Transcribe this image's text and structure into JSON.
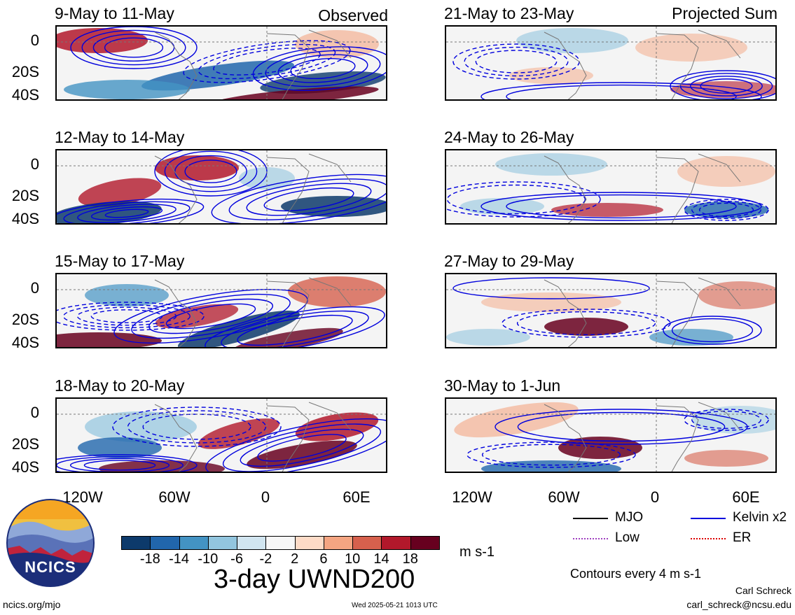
{
  "figure": {
    "title": "3-day UWND200",
    "units": "m s-1",
    "contour_note": "Contours every 4 m s-1",
    "author": "Carl Schreck",
    "email": "carl_schreck@ncsu.edu",
    "url": "ncics.org/mjo",
    "timestamp": "Wed 2025-05-21 1013 UTC",
    "logo_text": "NCICS"
  },
  "columns": {
    "left_label": "Observed",
    "right_label": "Projected Sum"
  },
  "panels": {
    "left": [
      "9-May to 11-May",
      "12-May to 14-May",
      "15-May to 17-May",
      "18-May to 20-May"
    ],
    "right": [
      "21-May to 23-May",
      "24-May to 26-May",
      "27-May to 29-May",
      "30-May to 1-Jun"
    ]
  },
  "axes": {
    "y_ticks": [
      "0",
      "20S",
      "40S"
    ],
    "x_ticks": [
      "120W",
      "60W",
      "0",
      "60E"
    ]
  },
  "colorbar": {
    "labels": [
      "-18",
      "-14",
      "-10",
      "-6",
      "-2",
      "2",
      "6",
      "10",
      "14",
      "18"
    ],
    "colors": [
      "#0d3a6b",
      "#2166ac",
      "#4393c3",
      "#92c5de",
      "#d1e5f0",
      "#f7f7f7",
      "#fddbc7",
      "#f4a582",
      "#d6604d",
      "#b2182b",
      "#67001f"
    ]
  },
  "legend": {
    "mjo": "MJO",
    "kelvin": "Kelvin x2",
    "low": "Low",
    "er": "ER",
    "colors": {
      "mjo": "#000000",
      "kelvin": "#0000dd",
      "low": "#a040c0",
      "er": "#dd0000"
    }
  }
}
